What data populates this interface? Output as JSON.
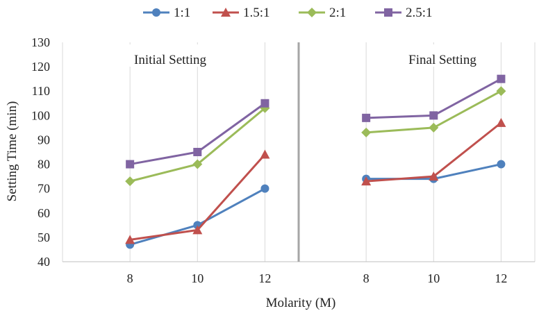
{
  "chart_data": {
    "type": "line",
    "xlabel": "Molarity (M)",
    "ylabel": "Setting Time (min)",
    "ylim": [
      40,
      130
    ],
    "y_ticks": [
      40,
      50,
      60,
      70,
      80,
      90,
      100,
      110,
      120,
      130
    ],
    "grid": "vertical gridlines only",
    "legend_position": "top",
    "panels": [
      {
        "label": "Initial Setting",
        "categories": [
          "8",
          "10",
          "12"
        ],
        "series": [
          {
            "name": "1:1",
            "values": [
              47,
              55,
              70
            ]
          },
          {
            "name": "1.5:1",
            "values": [
              49,
              53,
              84
            ]
          },
          {
            "name": "2:1",
            "values": [
              73,
              80,
              103
            ]
          },
          {
            "name": "2.5:1",
            "values": [
              80,
              85,
              105
            ]
          }
        ]
      },
      {
        "label": "Final Setting",
        "categories": [
          "8",
          "10",
          "12"
        ],
        "series": [
          {
            "name": "1:1",
            "values": [
              74,
              74,
              80
            ]
          },
          {
            "name": "1.5:1",
            "values": [
              73,
              75,
              97
            ]
          },
          {
            "name": "2:1",
            "values": [
              93,
              95,
              110
            ]
          },
          {
            "name": "2.5:1",
            "values": [
              99,
              100,
              115
            ]
          }
        ]
      }
    ],
    "series_styles": [
      {
        "name": "1:1",
        "color": "#4f81bd",
        "marker": "circle"
      },
      {
        "name": "1.5:1",
        "color": "#c0504d",
        "marker": "triangle"
      },
      {
        "name": "2:1",
        "color": "#9bbb59",
        "marker": "diamond"
      },
      {
        "name": "2.5:1",
        "color": "#8064a2",
        "marker": "square"
      }
    ]
  }
}
